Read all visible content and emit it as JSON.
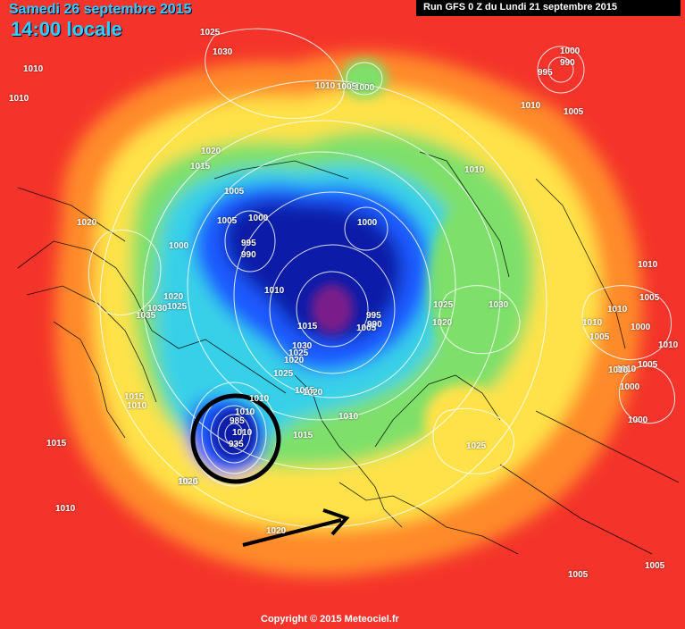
{
  "header": {
    "date": "Samedi 26 septembre 2015",
    "time": "14:00 locale",
    "run": "Run GFS 0 Z du Lundi 21 septembre 2015"
  },
  "footer": {
    "copyright": "Copyright © 2015 Meteociel.fr"
  },
  "colors": {
    "red": "#f4342a",
    "orange": "#ff8a2a",
    "yellow": "#ffe24a",
    "green": "#7ee06a",
    "cyan": "#38d0e8",
    "blue": "#1a5aff",
    "darkblue": "#0a1aa8",
    "purple": "#7a1a8a",
    "annotation": "#000000"
  },
  "pressure_labels": [
    "1025",
    "1030",
    "1010",
    "1010",
    "1010",
    "1005",
    "1000",
    "1000",
    "995",
    "990",
    "1010",
    "1005",
    "1020",
    "1015",
    "1005",
    "1005",
    "1000",
    "1000",
    "995",
    "990",
    "1010",
    "1020",
    "1000",
    "1020",
    "1030",
    "1025",
    "1035",
    "1010",
    "1015",
    "1030",
    "1025",
    "1020",
    "1025",
    "1015",
    "1005",
    "995",
    "990",
    "1025",
    "1020",
    "1030",
    "1010",
    "1010",
    "1005",
    "1010",
    "1000",
    "1010",
    "1005",
    "1010",
    "1000",
    "1010",
    "1000",
    "1005",
    "1010",
    "1020",
    "1010",
    "1015",
    "1010",
    "1015",
    "1010",
    "1015",
    "985",
    "935",
    "1010",
    "1015",
    "1025",
    "1020",
    "1010",
    "1020",
    "1005",
    "1005"
  ]
}
